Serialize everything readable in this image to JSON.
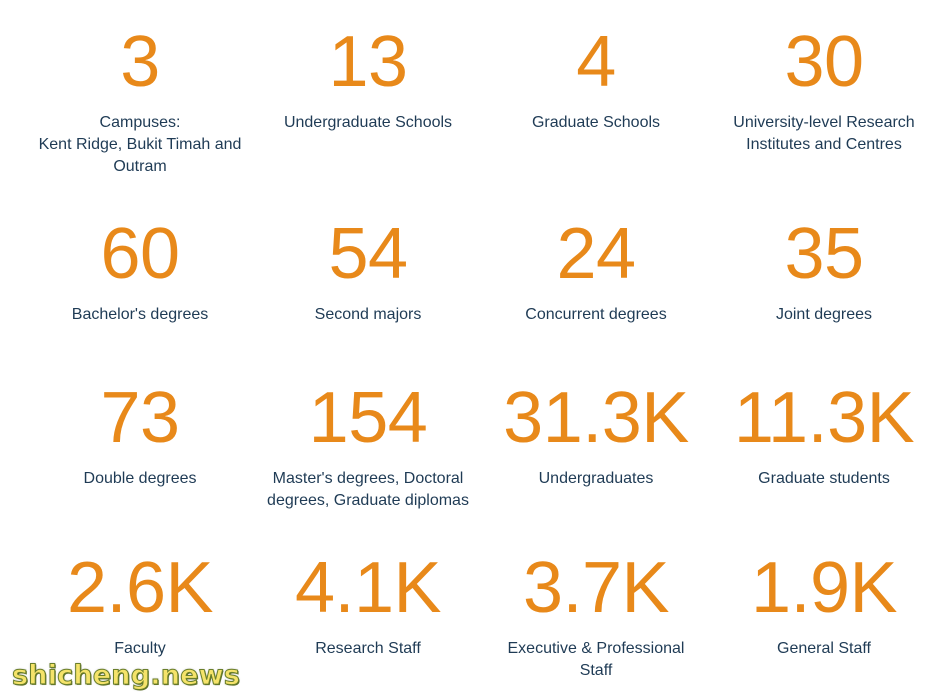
{
  "stats": [
    {
      "value": "3",
      "label": "Campuses:\nKent Ridge, Bukit Timah and\nOutram"
    },
    {
      "value": "13",
      "label": "Undergraduate Schools"
    },
    {
      "value": "4",
      "label": "Graduate Schools"
    },
    {
      "value": "30",
      "label": "University-level Research\nInstitutes and Centres"
    },
    {
      "value": "60",
      "label": "Bachelor's degrees"
    },
    {
      "value": "54",
      "label": "Second majors"
    },
    {
      "value": "24",
      "label": "Concurrent degrees"
    },
    {
      "value": "35",
      "label": "Joint degrees"
    },
    {
      "value": "73",
      "label": "Double degrees"
    },
    {
      "value": "154",
      "label": "Master's degrees, Doctoral\ndegrees, Graduate diplomas"
    },
    {
      "value": "31.3K",
      "label": "Undergraduates"
    },
    {
      "value": "11.3K",
      "label": "Graduate students"
    },
    {
      "value": "2.6K",
      "label": "Faculty"
    },
    {
      "value": "4.1K",
      "label": "Research Staff"
    },
    {
      "value": "3.7K",
      "label": "Executive & Professional\nStaff"
    },
    {
      "value": "1.9K",
      "label": "General Staff"
    }
  ],
  "watermark": "shicheng.news",
  "colors": {
    "number": "#e8891a",
    "label": "#1f3b55",
    "watermark_fill": "#f5e36a"
  }
}
